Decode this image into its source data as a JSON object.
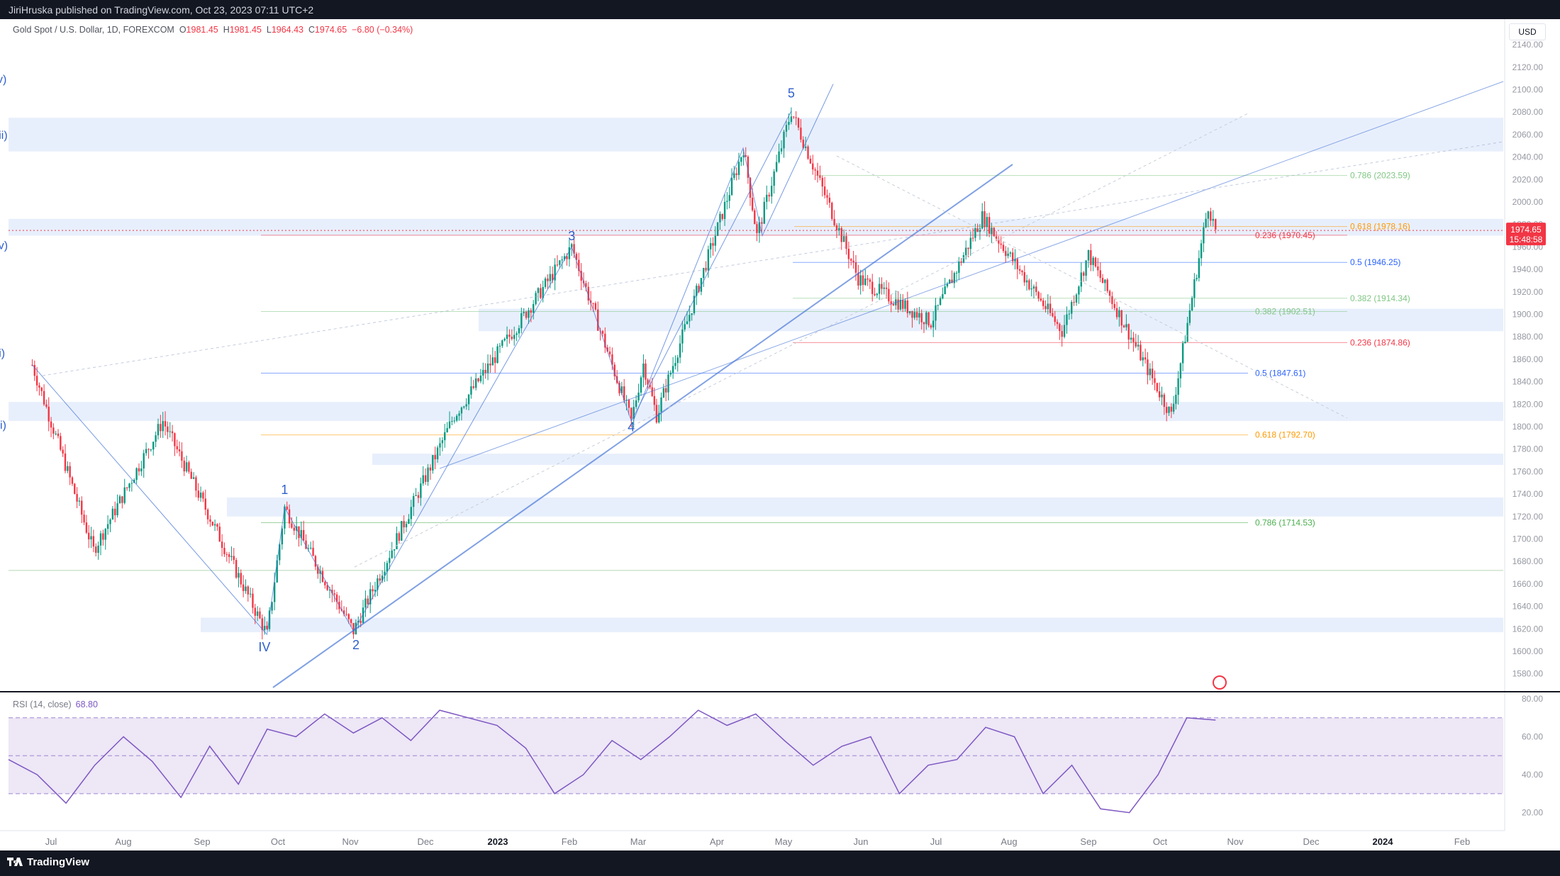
{
  "header": {
    "publisher": "JiriHruska published on TradingView.com, Oct 23, 2023 07:11 UTC+2"
  },
  "legend": {
    "symbol": "Gold Spot / U.S. Dollar, 1D, FOREXCOM",
    "o_label": "O",
    "o": "1981.45",
    "h_label": "H",
    "h": "1981.45",
    "l_label": "L",
    "l": "1964.43",
    "c_label": "C",
    "c": "1974.65",
    "change": "−6.80 (−0.34%)"
  },
  "currency_button": "USD",
  "price_tag": {
    "price": "1974.65",
    "countdown": "15:48:58"
  },
  "rsi_legend": {
    "label": "RSI (14, close)",
    "value": "68.80"
  },
  "footer": {
    "brand": "TradingView"
  },
  "colors": {
    "bull": "#089981",
    "bear": "#f23645",
    "wave": "#3d6fd6",
    "zone": "#e8effc",
    "rsi": "#7e57c2",
    "rsi_band": "#ede7f6"
  },
  "chart_data": [
    {
      "type": "candlestick",
      "title": "Gold Spot / U.S. Dollar, 1D, FOREXCOM",
      "ylim": [
        1570,
        2150
      ],
      "y_ticks": [
        "1580.00",
        "1600.00",
        "1620.00",
        "1640.00",
        "1660.00",
        "1680.00",
        "1700.00",
        "1720.00",
        "1740.00",
        "1760.00",
        "1780.00",
        "1800.00",
        "1820.00",
        "1840.00",
        "1860.00",
        "1880.00",
        "1900.00",
        "1920.00",
        "1940.00",
        "1960.00",
        "1980.00",
        "2000.00",
        "2020.00",
        "2040.00",
        "2060.00",
        "2080.00",
        "2100.00",
        "2120.00",
        "2140.00"
      ],
      "x_ticks": [
        "Jul",
        "Aug",
        "Sep",
        "Oct",
        "Nov",
        "Dec",
        "2023",
        "Feb",
        "Mar",
        "Apr",
        "May",
        "Jun",
        "Jul",
        "Aug",
        "Sep",
        "Oct",
        "Nov",
        "Dec",
        "2024",
        "Feb"
      ],
      "grid": false,
      "key_prices": [
        {
          "date": "Jun 20",
          "price": 1855
        },
        {
          "date": "Jul 20",
          "price": 1690
        },
        {
          "date": "Aug 17",
          "price": 1805
        },
        {
          "date": "Sep 27",
          "price": 1615
        },
        {
          "date": "Oct 4",
          "price": 1728
        },
        {
          "date": "Nov 2",
          "price": 1618
        },
        {
          "date": "Dec 13",
          "price": 1810
        },
        {
          "date": "Feb 2",
          "price": 1960
        },
        {
          "date": "Feb 28",
          "price": 1805
        },
        {
          "date": "Mar 3",
          "price": 1856
        },
        {
          "date": "Mar 8",
          "price": 1810
        },
        {
          "date": "Apr 13",
          "price": 2048
        },
        {
          "date": "Apr 19",
          "price": 1970
        },
        {
          "date": "May 4",
          "price": 2081
        },
        {
          "date": "May 30",
          "price": 1932
        },
        {
          "date": "Jun 29",
          "price": 1893
        },
        {
          "date": "Jul 20",
          "price": 1987
        },
        {
          "date": "Aug 21",
          "price": 1885
        },
        {
          "date": "Sep 1",
          "price": 1953
        },
        {
          "date": "Oct 5",
          "price": 1810
        },
        {
          "date": "Oct 20",
          "price": 1997
        },
        {
          "date": "Oct 23",
          "price": 1974.65
        }
      ],
      "wave_labels": [
        {
          "text": "IV",
          "date": "Sep 26",
          "price": 1600
        },
        {
          "text": "1",
          "date": "Oct 4",
          "price": 1740
        },
        {
          "text": "2",
          "date": "Nov 3",
          "price": 1602
        },
        {
          "text": "3",
          "date": "Feb 2",
          "price": 1966
        },
        {
          "text": "4",
          "date": "Feb 28",
          "price": 1796
        },
        {
          "text": "5",
          "date": "May 4",
          "price": 2093
        },
        {
          "text": "(i)",
          "date": "Mar 3",
          "price": 1862
        },
        {
          "text": "(ii)",
          "date": "Mar 8",
          "price": 1798
        },
        {
          "text": "(iii)",
          "date": "Apr 13",
          "price": 2056
        },
        {
          "text": "(iv)",
          "date": "Apr 20",
          "price": 1958
        },
        {
          "text": "(v)",
          "date": "May 20",
          "price": 2106
        }
      ],
      "fib_levels": [
        {
          "label": "0.786 (2023.59)",
          "price": 2023.59,
          "color": "#81c784"
        },
        {
          "label": "0.618 (1978.16)",
          "price": 1978.16,
          "color": "#ff9800"
        },
        {
          "label": "0.236 (1970.45)",
          "price": 1970.45,
          "color": "#f23645"
        },
        {
          "label": "0.5 (1946.25)",
          "price": 1946.25,
          "color": "#2962ff"
        },
        {
          "label": "0.382 (1914.34)",
          "price": 1914.34,
          "color": "#81c784"
        },
        {
          "label": "0.382 (1902.51)",
          "price": 1902.51,
          "color": "#81c784"
        },
        {
          "label": "0.236 (1874.86)",
          "price": 1874.86,
          "color": "#f23645"
        },
        {
          "label": "0.5 (1847.61)",
          "price": 1847.61,
          "color": "#2962ff"
        },
        {
          "label": "0.618 (1792.70)",
          "price": 1792.7,
          "color": "#ff9800"
        },
        {
          "label": "0.786 (1714.53)",
          "price": 1714.53,
          "color": "#4caf50"
        }
      ],
      "zones": [
        {
          "from": 2045,
          "to": 2075
        },
        {
          "from": 1970,
          "to": 1985
        },
        {
          "from": 1885,
          "to": 1905
        },
        {
          "from": 1805,
          "to": 1822
        },
        {
          "from": 1766,
          "to": 1776
        },
        {
          "from": 1720,
          "to": 1737
        },
        {
          "from": 1617,
          "to": 1630
        }
      ]
    },
    {
      "type": "line",
      "title": "RSI (14, close)",
      "ylim": [
        15,
        80
      ],
      "y_ticks": [
        "20.00",
        "40.00",
        "60.00",
        "80.00"
      ],
      "bands": [
        30,
        50,
        70
      ],
      "series": [
        {
          "name": "RSI (14, close)",
          "values": [
            48,
            40,
            25,
            45,
            60,
            47,
            28,
            55,
            35,
            64,
            60,
            72,
            62,
            70,
            58,
            74,
            70,
            66,
            54,
            30,
            40,
            58,
            48,
            60,
            74,
            66,
            72,
            58,
            45,
            55,
            60,
            30,
            45,
            48,
            65,
            60,
            30,
            45,
            22,
            20,
            40,
            70,
            68.8
          ]
        }
      ]
    }
  ]
}
